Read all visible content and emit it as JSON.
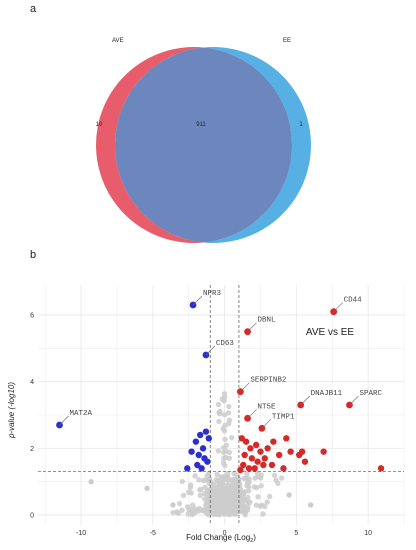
{
  "panel_a": {
    "letter": "a"
  },
  "panel_b": {
    "letter": "b"
  },
  "colors": {
    "venn_left": "#e85d6c",
    "venn_right": "#56b0e4",
    "venn_overlap": "#6b87be",
    "up": "#d42a2a",
    "down": "#2b2fd0",
    "ns": "#cccccc",
    "grid": "#e9e9e9"
  },
  "chart_data": [
    {
      "type": "venn",
      "sets": [
        {
          "name": "AVE",
          "only": 10
        },
        {
          "name": "EE",
          "only": 1
        }
      ],
      "intersection": 911
    },
    {
      "type": "scatter",
      "title": "AVE vs EE",
      "xlabel": "Fold Change (Log",
      "xlabel_sub": "2",
      "xlabel_end": ")",
      "ylabel": "p-value (-log10)",
      "xlim": [
        -13,
        12.5
      ],
      "ylim": [
        -0.3,
        6.9
      ],
      "xticks": [
        -10,
        -5,
        0,
        5,
        10
      ],
      "yticks": [
        0,
        2,
        4,
        6
      ],
      "grid": true,
      "thresholds": {
        "x": [
          -1,
          1
        ],
        "y": 1.3
      },
      "labeled_points": [
        {
          "gene": "NPR3",
          "x": -2.2,
          "y": 6.3,
          "group": "down"
        },
        {
          "gene": "CD63",
          "x": -1.3,
          "y": 4.8,
          "group": "down"
        },
        {
          "gene": "MAT2A",
          "x": -11.5,
          "y": 2.7,
          "group": "down"
        },
        {
          "gene": "DBNL",
          "x": 1.6,
          "y": 5.5,
          "group": "up"
        },
        {
          "gene": "CD44",
          "x": 7.6,
          "y": 6.1,
          "group": "up"
        },
        {
          "gene": "SERPINB2",
          "x": 1.1,
          "y": 3.7,
          "group": "up"
        },
        {
          "gene": "DNAJB11",
          "x": 5.3,
          "y": 3.3,
          "group": "up"
        },
        {
          "gene": "SPARC",
          "x": 8.7,
          "y": 3.3,
          "group": "up"
        },
        {
          "gene": "NT5E",
          "x": 1.6,
          "y": 2.9,
          "group": "up"
        },
        {
          "gene": "TIMP1",
          "x": 2.6,
          "y": 2.6,
          "group": "up"
        }
      ],
      "down_points": [
        [
          -2.0,
          2.2
        ],
        [
          -1.7,
          2.4
        ],
        [
          -1.3,
          2.5
        ],
        [
          -2.3,
          1.9
        ],
        [
          -1.8,
          1.8
        ],
        [
          -1.5,
          2.0
        ],
        [
          -1.9,
          1.5
        ],
        [
          -1.4,
          1.7
        ],
        [
          -1.6,
          1.4
        ],
        [
          -1.2,
          1.6
        ],
        [
          -2.6,
          1.4
        ],
        [
          -1.1,
          2.3
        ]
      ],
      "up_points": [
        [
          1.2,
          2.3
        ],
        [
          1.5,
          2.2
        ],
        [
          1.8,
          2.0
        ],
        [
          2.2,
          2.1
        ],
        [
          2.5,
          1.9
        ],
        [
          3.0,
          2.0
        ],
        [
          3.4,
          2.2
        ],
        [
          3.8,
          1.8
        ],
        [
          1.4,
          1.8
        ],
        [
          1.9,
          1.7
        ],
        [
          2.3,
          1.6
        ],
        [
          2.8,
          1.7
        ],
        [
          1.3,
          1.5
        ],
        [
          1.7,
          1.4
        ],
        [
          2.1,
          1.4
        ],
        [
          2.7,
          1.5
        ],
        [
          4.3,
          2.3
        ],
        [
          4.6,
          1.9
        ],
        [
          5.2,
          1.8
        ],
        [
          5.6,
          1.6
        ],
        [
          6.9,
          1.9
        ],
        [
          4.1,
          1.4
        ],
        [
          5.4,
          1.9
        ],
        [
          10.9,
          1.4
        ],
        [
          3.3,
          1.5
        ],
        [
          1.1,
          1.35
        ]
      ]
    }
  ]
}
